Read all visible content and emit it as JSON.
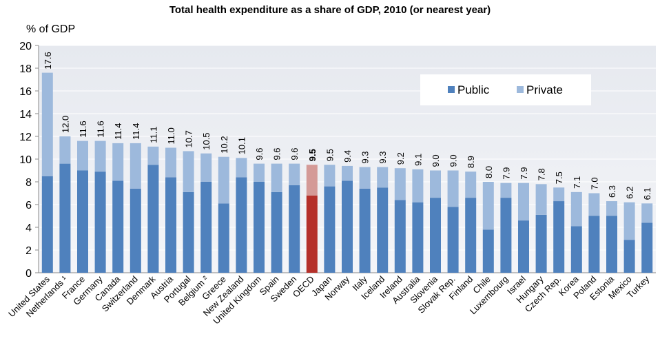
{
  "chart_data": {
    "type": "stacked_bar",
    "title": "Total health expenditure as a share of GDP, 2010 (or nearest year)",
    "ylabel": "% of GDP",
    "categories": [
      "United States",
      "Netherlands ¹",
      "France",
      "Germany",
      "Canada",
      "Switzerland",
      "Denmark",
      "Austria",
      "Portugal",
      "Belgium ²",
      "Greece",
      "New Zealand",
      "United Kingdom",
      "Spain",
      "Sweden",
      "OECD",
      "Japan",
      "Norway",
      "Italy",
      "Iceland",
      "Ireland",
      "Australia",
      "Slovenia",
      "Slovak Rep.",
      "Finland",
      "Chile",
      "Luxembourg",
      "Israel",
      "Hungary",
      "Czech Rep.",
      "Korea",
      "Poland",
      "Estonia",
      "Mexico",
      "Turkey"
    ],
    "series": [
      {
        "name": "Public",
        "color": "#4f81bd",
        "values": [
          8.5,
          9.6,
          9.0,
          8.9,
          8.1,
          7.4,
          9.5,
          8.4,
          7.1,
          8.0,
          6.1,
          8.4,
          8.0,
          7.1,
          7.7,
          6.8,
          7.6,
          8.1,
          7.4,
          7.5,
          6.4,
          6.2,
          6.6,
          5.8,
          6.6,
          3.8,
          6.6,
          4.6,
          5.1,
          6.3,
          4.1,
          5.0,
          5.0,
          2.9,
          4.4
        ]
      },
      {
        "name": "Private",
        "color": "#9db9dc",
        "values": [
          9.1,
          2.4,
          2.6,
          2.7,
          3.3,
          4.0,
          1.6,
          2.6,
          3.6,
          2.5,
          4.1,
          1.7,
          1.6,
          2.5,
          1.9,
          2.7,
          1.9,
          1.3,
          1.9,
          1.8,
          2.8,
          2.9,
          2.4,
          3.2,
          2.3,
          4.2,
          1.3,
          3.3,
          2.7,
          1.2,
          3.0,
          2.0,
          1.3,
          3.3,
          1.7
        ]
      }
    ],
    "totals": [
      17.6,
      12.0,
      11.6,
      11.6,
      11.4,
      11.4,
      11.1,
      11.0,
      10.7,
      10.5,
      10.2,
      10.1,
      9.6,
      9.6,
      9.6,
      9.5,
      9.5,
      9.4,
      9.3,
      9.3,
      9.2,
      9.1,
      9.0,
      9.0,
      8.9,
      8.0,
      7.9,
      7.9,
      7.8,
      7.5,
      7.1,
      7.0,
      6.3,
      6.2,
      6.1
    ],
    "totals_labels": [
      "17.6",
      "12.0",
      "11.6",
      "11.6",
      "11.4",
      "11.4",
      "11.1",
      "11.0",
      "10.7",
      "10.5",
      "10.2",
      "10.1",
      "9.6",
      "9.6",
      "9.6",
      "9.5",
      "9.5",
      "9.4",
      "9.3",
      "9.3",
      "9.2",
      "9.1",
      "9.0",
      "9.0",
      "8.9",
      "8.0",
      "7.9",
      "7.9",
      "7.8",
      "7.5",
      "7.1",
      "7.0",
      "6.3",
      "6.2",
      "6.1"
    ],
    "highlight": "OECD",
    "highlight_colors": [
      "#b5302a",
      "#d49a97"
    ],
    "ylim": [
      0,
      20
    ],
    "yticks": [
      0,
      2,
      4,
      6,
      8,
      10,
      12,
      14,
      16,
      18,
      20
    ],
    "legend": "top-right",
    "grid": true
  }
}
